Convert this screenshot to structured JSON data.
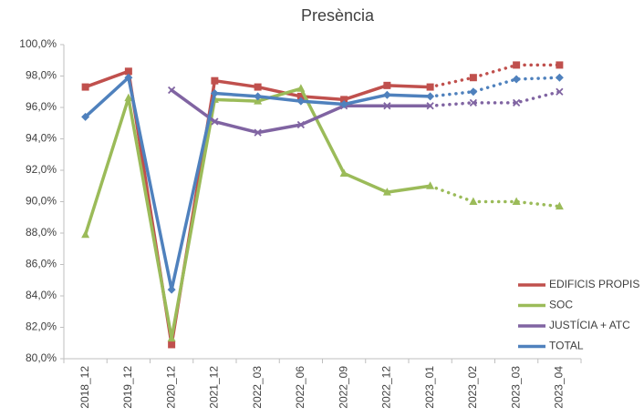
{
  "chart_data": {
    "type": "line",
    "title": "Presència",
    "categories": [
      "2018_12",
      "2019_12",
      "2020_12",
      "2021_12",
      "2022_03",
      "2022_06",
      "2022_09",
      "2022_12",
      "2023_01",
      "2023_02",
      "2023_03",
      "2023_04"
    ],
    "forecast_start": "2023_01",
    "series": [
      {
        "name": "EDIFICIS PROPIS",
        "color": "#c0504d",
        "marker": "square",
        "values": [
          97.3,
          98.3,
          80.9,
          97.7,
          97.3,
          96.7,
          96.5,
          97.4,
          97.3,
          97.9,
          98.7,
          98.7
        ]
      },
      {
        "name": "SOC",
        "color": "#9bbb59",
        "marker": "triangle",
        "values": [
          87.9,
          96.6,
          81.3,
          96.5,
          96.4,
          97.2,
          91.8,
          90.6,
          91.0,
          90.0,
          90.0,
          89.7
        ]
      },
      {
        "name": "JUSTÍCIA + ATC",
        "color": "#8064a2",
        "marker": "x",
        "values": [
          null,
          null,
          97.1,
          95.1,
          94.4,
          94.9,
          96.1,
          96.1,
          96.1,
          96.3,
          96.3,
          97.0
        ]
      },
      {
        "name": "TOTAL",
        "color": "#4f81bd",
        "marker": "diamond",
        "values": [
          95.4,
          97.9,
          84.4,
          96.9,
          96.7,
          96.4,
          96.2,
          96.8,
          96.7,
          97.0,
          97.8,
          97.9
        ]
      }
    ],
    "ylim": [
      80,
      100
    ],
    "yticks": [
      {
        "value": 80,
        "label": "80,0%"
      },
      {
        "value": 82,
        "label": "82,0%"
      },
      {
        "value": 84,
        "label": "84,0%"
      },
      {
        "value": 86,
        "label": "86,0%"
      },
      {
        "value": 88,
        "label": "88,0%"
      },
      {
        "value": 90,
        "label": "90,0%"
      },
      {
        "value": 92,
        "label": "92,0%"
      },
      {
        "value": 94,
        "label": "94,0%"
      },
      {
        "value": 96,
        "label": "96,0%"
      },
      {
        "value": 98,
        "label": "98,0%"
      },
      {
        "value": 100,
        "label": "100,0%"
      }
    ],
    "grid": false,
    "legend": "bottom-right"
  }
}
